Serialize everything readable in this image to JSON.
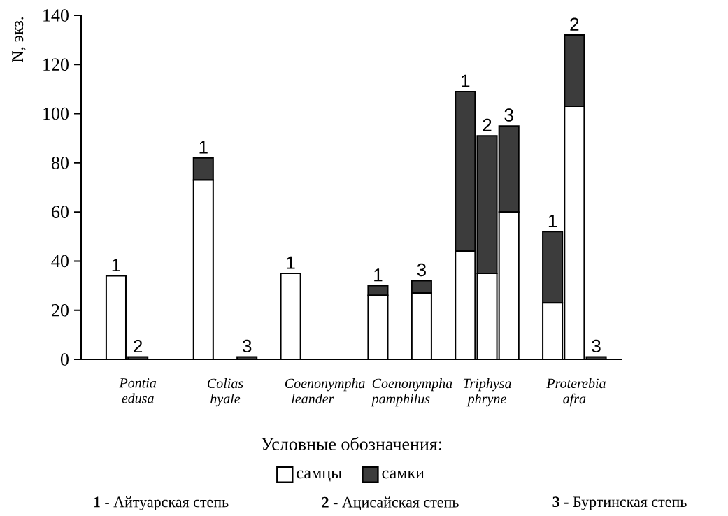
{
  "chart_data": {
    "type": "bar",
    "stacked": true,
    "ylabel": "N, экз.",
    "legend_title": "Условные обозначения:",
    "legend": "bottom",
    "categories": [
      "1",
      "2",
      null,
      null,
      "1",
      null,
      "3",
      null,
      "1",
      null,
      null,
      null,
      "1",
      null,
      "3",
      null,
      "1",
      "2",
      "3",
      null,
      "1",
      "2",
      "3"
    ],
    "series": [
      {
        "name": "самцы",
        "color": "#ffffff",
        "values": [
          34,
          0,
          null,
          null,
          73,
          null,
          0,
          null,
          35,
          null,
          null,
          null,
          26,
          null,
          27,
          null,
          44,
          35,
          60,
          null,
          23,
          103,
          0
        ]
      },
      {
        "name": "самки",
        "color": "#3c3c3c",
        "values": [
          0,
          1,
          null,
          null,
          9,
          null,
          1,
          null,
          0,
          null,
          null,
          null,
          4,
          null,
          5,
          null,
          65,
          56,
          35,
          null,
          29,
          29,
          1
        ]
      }
    ],
    "ylim": [
      0,
      140
    ],
    "yticks": [
      0,
      20,
      40,
      60,
      80,
      100,
      120,
      140
    ],
    "annotations": [
      "Pontia edusa",
      "Colias hyale",
      "Coenonympha leander",
      "Coenonympha pamphilus",
      "Triphysa phryne",
      "Proterebia afra",
      "**1 -** Айтуарская степь",
      "**2 -** Ацисайская степь",
      "**3 -** Буртинская степь"
    ]
  }
}
